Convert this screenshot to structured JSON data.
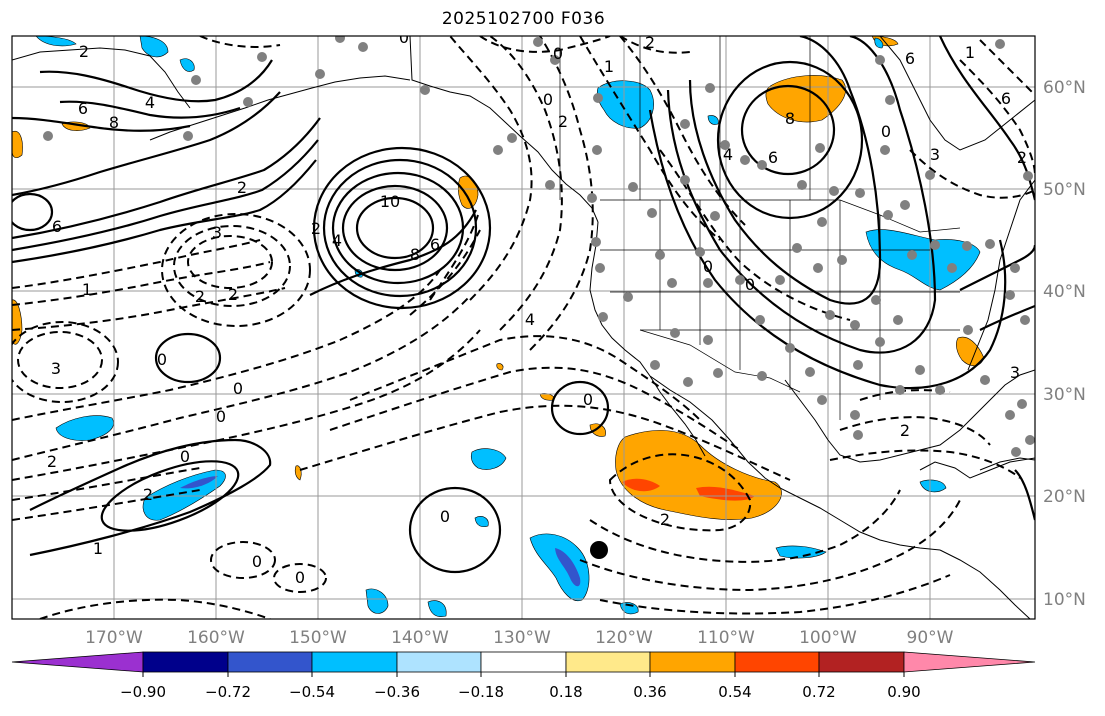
{
  "title": "2025102700 F036",
  "axes": {
    "lon_labels": [
      "170°W",
      "160°W",
      "150°W",
      "140°W",
      "130°W",
      "120°W",
      "110°W",
      "100°W",
      "90°W"
    ],
    "lat_labels": [
      "60°N",
      "50°N",
      "40°N",
      "30°N",
      "20°N",
      "10°N"
    ]
  },
  "colorbar": {
    "tick_labels": [
      "−0.90",
      "−0.72",
      "−0.54",
      "−0.36",
      "−0.18",
      "0.18",
      "0.36",
      "0.54",
      "0.72",
      "0.90"
    ],
    "colors": [
      "#9b30d0",
      "#00008b",
      "#3355cc",
      "#00bfff",
      "#aee3ff",
      "#ffffff",
      "#ffe98a",
      "#ffa500",
      "#ff4500",
      "#b22222",
      "#ff88aa"
    ]
  },
  "contour_labels": [
    {
      "text": "2"
    },
    {
      "text": "4"
    },
    {
      "text": "6"
    },
    {
      "text": "8"
    },
    {
      "text": "6"
    },
    {
      "text": "2"
    },
    {
      "text": "10"
    },
    {
      "text": "8"
    },
    {
      "text": "6"
    },
    {
      "text": "4"
    },
    {
      "text": "2"
    },
    {
      "text": "3"
    },
    {
      "text": "2"
    },
    {
      "text": "2"
    },
    {
      "text": "1"
    },
    {
      "text": "3"
    },
    {
      "text": "0"
    },
    {
      "text": "0"
    },
    {
      "text": "0"
    },
    {
      "text": "2"
    },
    {
      "text": "0"
    },
    {
      "text": "2"
    },
    {
      "text": "1"
    },
    {
      "text": "0"
    },
    {
      "text": "0"
    },
    {
      "text": "4"
    },
    {
      "text": "0"
    },
    {
      "text": "0"
    },
    {
      "text": "0"
    },
    {
      "text": "2"
    },
    {
      "text": "2"
    },
    {
      "text": "1"
    },
    {
      "text": "0"
    },
    {
      "text": "6"
    },
    {
      "text": "4"
    },
    {
      "text": "0"
    },
    {
      "text": "8"
    },
    {
      "text": "6"
    },
    {
      "text": "0"
    },
    {
      "text": "3"
    },
    {
      "text": "6"
    },
    {
      "text": "2"
    },
    {
      "text": "2"
    },
    {
      "text": "3"
    },
    {
      "text": "2"
    },
    {
      "text": "0"
    },
    {
      "text": "1"
    },
    {
      "text": "0"
    }
  ]
}
